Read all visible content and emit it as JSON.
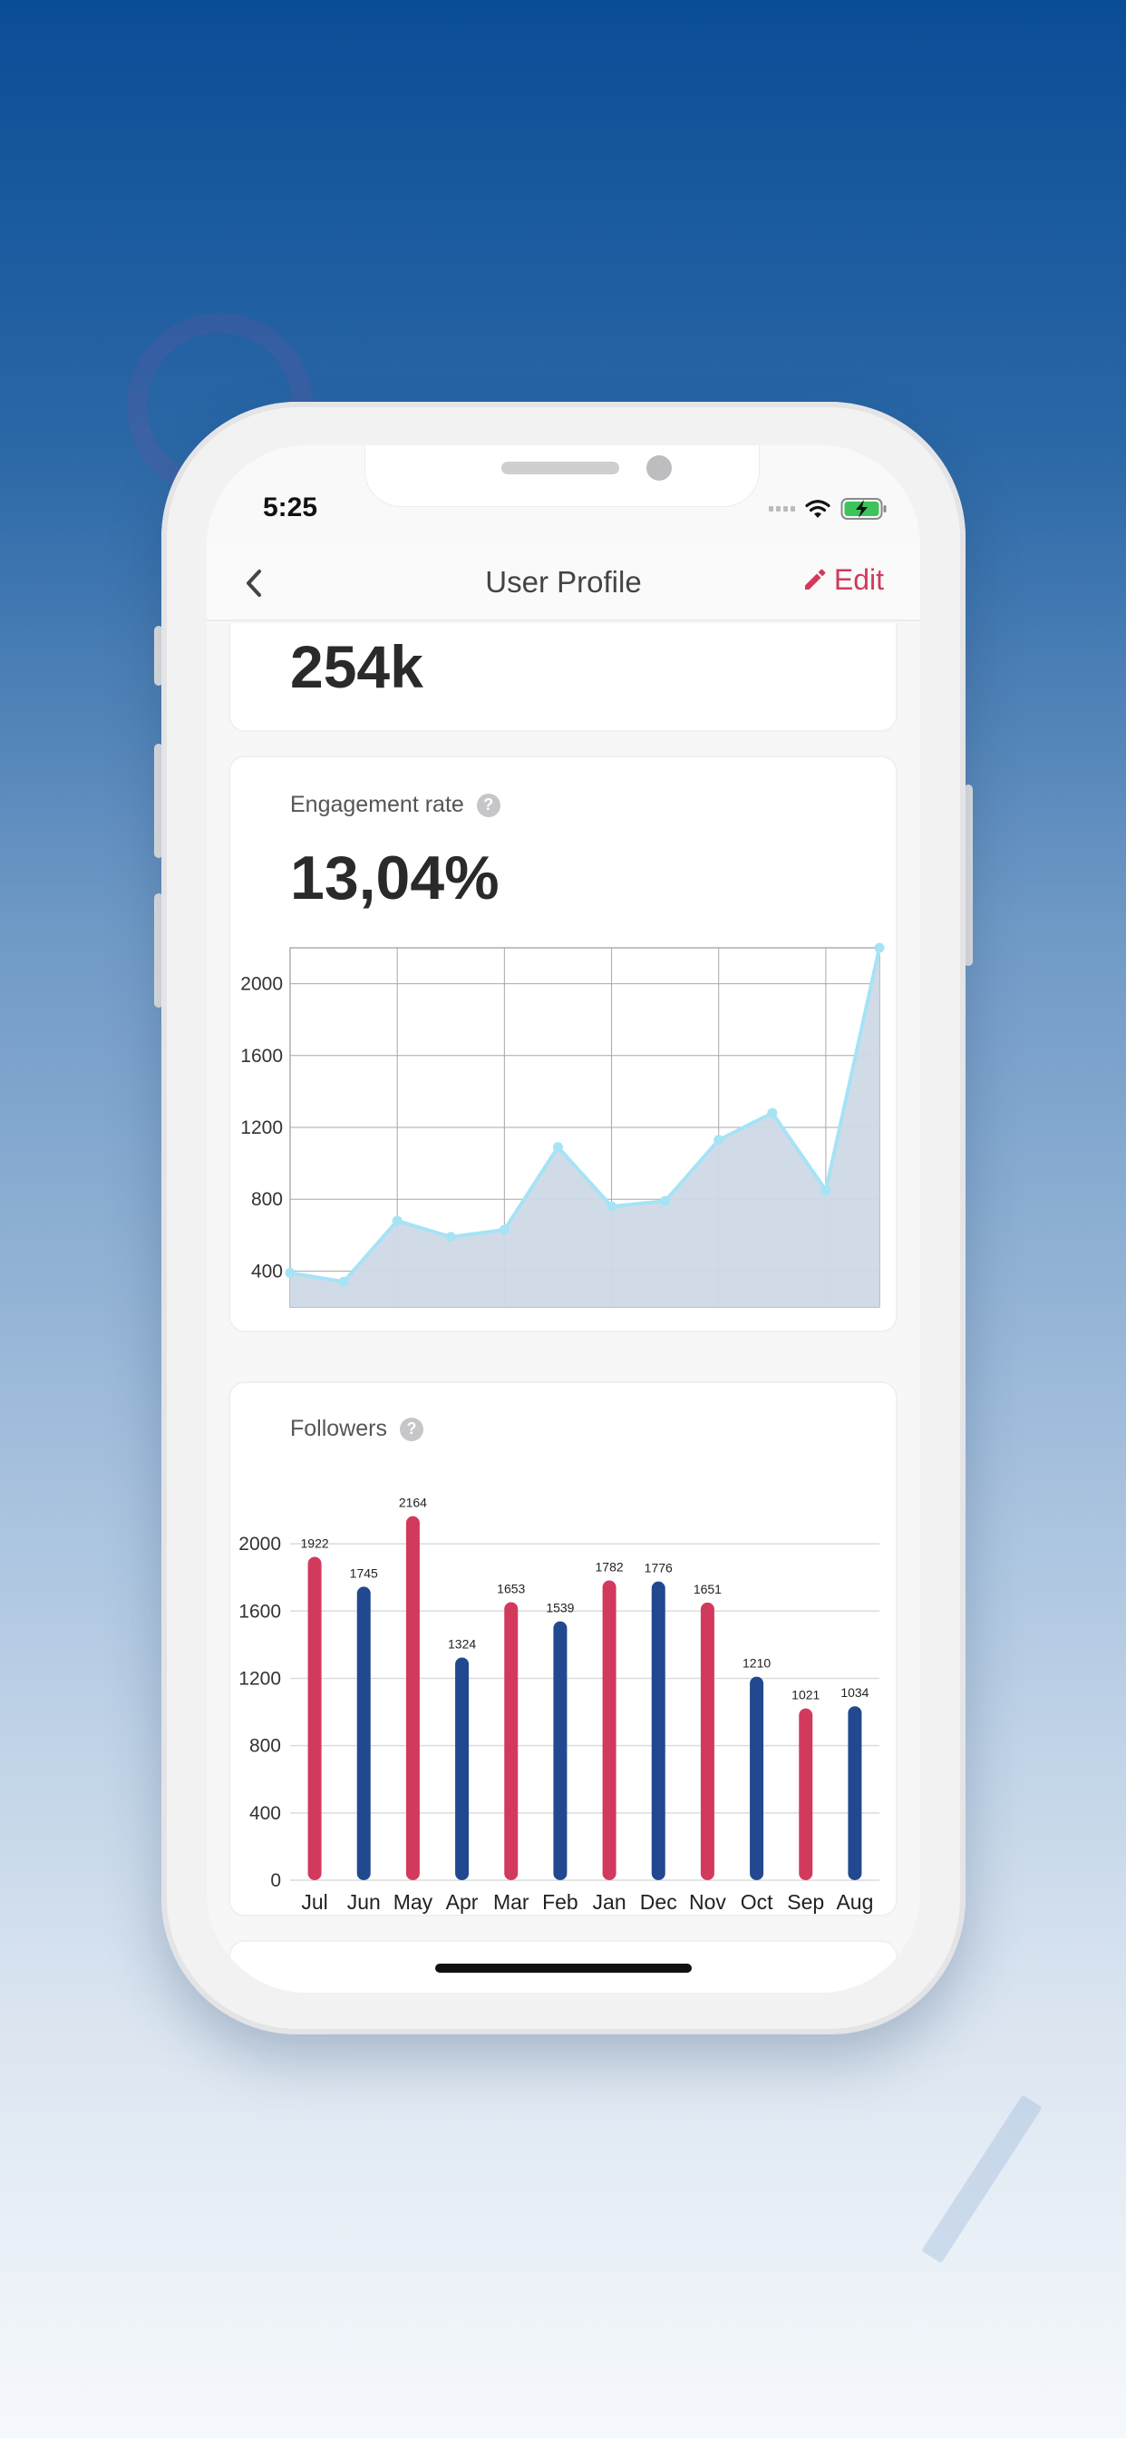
{
  "status_bar": {
    "time": "5:25"
  },
  "nav": {
    "title": "User Profile",
    "edit_label": "Edit"
  },
  "followers_summary": {
    "value": "254k"
  },
  "engagement": {
    "label": "Engagement rate",
    "value": "13,04%"
  },
  "followers_chart": {
    "label": "Followers"
  },
  "colors": {
    "accent": "#d23a5d",
    "navy": "#22488f",
    "line": "#a5e3f5",
    "area": "#cfd9e6"
  },
  "chart_data": [
    {
      "type": "area",
      "ylim": [
        200,
        2200
      ],
      "y_ticks": [
        400,
        800,
        1200,
        1600,
        2000
      ],
      "grid": true,
      "series": [
        {
          "values": [
            390,
            340,
            680,
            590,
            630,
            1090,
            760,
            790,
            1130,
            1280,
            850,
            2200
          ]
        }
      ]
    },
    {
      "type": "bar",
      "categories": [
        "Jul",
        "Jun",
        "May",
        "Apr",
        "Mar",
        "Feb",
        "Jan",
        "Dec",
        "Nov",
        "Oct",
        "Sep",
        "Aug"
      ],
      "values": [
        1922,
        1745,
        2164,
        1324,
        1653,
        1539,
        1782,
        1776,
        1651,
        1210,
        1021,
        1034
      ],
      "bar_colors": [
        "#d23a5d",
        "#22488f",
        "#d23a5d",
        "#22488f",
        "#d23a5d",
        "#22488f",
        "#d23a5d",
        "#22488f",
        "#d23a5d",
        "#22488f",
        "#d23a5d",
        "#22488f"
      ],
      "ylim": [
        0,
        2200
      ],
      "y_ticks": [
        0,
        400,
        800,
        1200,
        1600,
        2000
      ],
      "grid": true
    }
  ]
}
